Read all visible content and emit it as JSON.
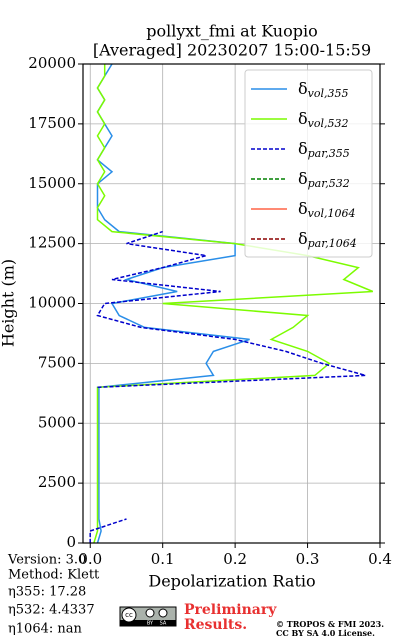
{
  "chart_data": {
    "type": "line",
    "title": "pollyxt_fmi at Kuopio",
    "subtitle": "[Averaged] 20230207 15:00-15:59",
    "x_label": "Depolarization Ratio",
    "y_label": "Height (m)",
    "xlim": [
      -0.01,
      0.4
    ],
    "xticks": [
      {
        "value": 0,
        "label": "0.0"
      },
      0.1,
      0.2,
      0.3,
      0.4
    ],
    "ylim": [
      0,
      20000
    ],
    "yticks": [
      0,
      2500,
      5000,
      7500,
      10000,
      12500,
      15000,
      17500,
      20000
    ],
    "grid": true,
    "legend": "upper right",
    "heights": [
      0,
      500,
      1000,
      1500,
      2000,
      2500,
      3000,
      3500,
      4000,
      4500,
      5000,
      5500,
      6000,
      6500,
      7000,
      7500,
      8000,
      8500,
      9000,
      9500,
      10000,
      10500,
      11000,
      11500,
      12000,
      12500,
      13000,
      13500,
      14000,
      14500,
      15000,
      15500,
      16000,
      16500,
      17000,
      17500,
      18000,
      18500,
      19000,
      19500,
      20000
    ],
    "series": [
      {
        "name": "δvol,355",
        "color": "#2a8ee8",
        "dash": false,
        "values": [
          0.01,
          0.015,
          0.012,
          0.012,
          0.012,
          0.012,
          0.012,
          0.012,
          0.012,
          0.012,
          0.012,
          0.012,
          0.012,
          0.012,
          0.17,
          0.16,
          0.17,
          0.22,
          0.075,
          0.04,
          0.03,
          0.12,
          0.05,
          0.1,
          0.2,
          0.2,
          0.04,
          0.02,
          0.01,
          0.01,
          0.01,
          0.03,
          0.01,
          0.02,
          0.03,
          0.02,
          0.01,
          0.02,
          0.01,
          0.02,
          0.03
        ]
      },
      {
        "name": "δvol,532",
        "color": "#7cfc00",
        "dash": false,
        "values": [
          0.005,
          0.01,
          0.01,
          0.01,
          0.01,
          0.01,
          0.01,
          0.01,
          0.01,
          0.01,
          0.01,
          0.01,
          0.01,
          0.01,
          0.31,
          0.33,
          0.3,
          0.25,
          0.28,
          0.3,
          0.1,
          0.39,
          0.35,
          0.37,
          0.3,
          0.2,
          0.03,
          0.01,
          0.01,
          0.02,
          0.01,
          0.02,
          0.01,
          0.02,
          0.01,
          0.02,
          0.01,
          0.02,
          0.01,
          0.02,
          0.02
        ]
      },
      {
        "name": "δpar,355",
        "color": "#0000cc",
        "dash": true,
        "values": [
          0.0,
          0.0,
          0.05,
          null,
          null,
          null,
          0.02,
          null,
          null,
          null,
          0.03,
          null,
          null,
          0.01,
          0.38,
          0.32,
          0.27,
          0.2,
          0.07,
          0.01,
          0.02,
          0.18,
          0.03,
          0.1,
          0.16,
          0.05,
          0.1,
          null,
          null,
          null,
          null,
          null,
          null,
          null,
          null,
          null,
          null,
          null,
          null,
          null,
          null
        ]
      },
      {
        "name": "δpar,532",
        "color": "#008000",
        "dash": true,
        "values": [
          null,
          null,
          null,
          null,
          null,
          null,
          null,
          null,
          null,
          null,
          null,
          null,
          null,
          null,
          null,
          null,
          null,
          null,
          null,
          null,
          null,
          null,
          null,
          null,
          null,
          null,
          null,
          null,
          null,
          null,
          null,
          null,
          null,
          null,
          null,
          null,
          null,
          null,
          null,
          null,
          null
        ]
      },
      {
        "name": "δvol,1064",
        "color": "#ff6347",
        "dash": false,
        "values": [
          null,
          null,
          null,
          null,
          null,
          null,
          null,
          null,
          null,
          null,
          null,
          null,
          null,
          null,
          null,
          null,
          null,
          null,
          null,
          null,
          null,
          null,
          null,
          null,
          null,
          null,
          null,
          null,
          null,
          null,
          null,
          null,
          null,
          null,
          null,
          null,
          null,
          null,
          null,
          null,
          null
        ]
      },
      {
        "name": "δpar,1064",
        "color": "#8b0000",
        "dash": true,
        "values": [
          null,
          null,
          null,
          null,
          null,
          null,
          null,
          null,
          null,
          null,
          null,
          null,
          null,
          null,
          null,
          null,
          null,
          null,
          null,
          null,
          null,
          null,
          null,
          null,
          null,
          null,
          null,
          null,
          null,
          null,
          null,
          null,
          null,
          null,
          null,
          null,
          null,
          null,
          null,
          null,
          null
        ]
      }
    ]
  },
  "footer": {
    "version": "Version: 3.0",
    "method": "Method: Klett",
    "eta355": "η355:  17.28",
    "eta532": "η532: 4.4337",
    "eta1064": "η1064:    nan",
    "badge": [
      "cc",
      "BY",
      "SA"
    ],
    "preliminary": [
      "Preliminary",
      "Results."
    ],
    "copyright": [
      "© TROPOS & FMI 2023.",
      "CC BY SA 4.0 License."
    ]
  }
}
